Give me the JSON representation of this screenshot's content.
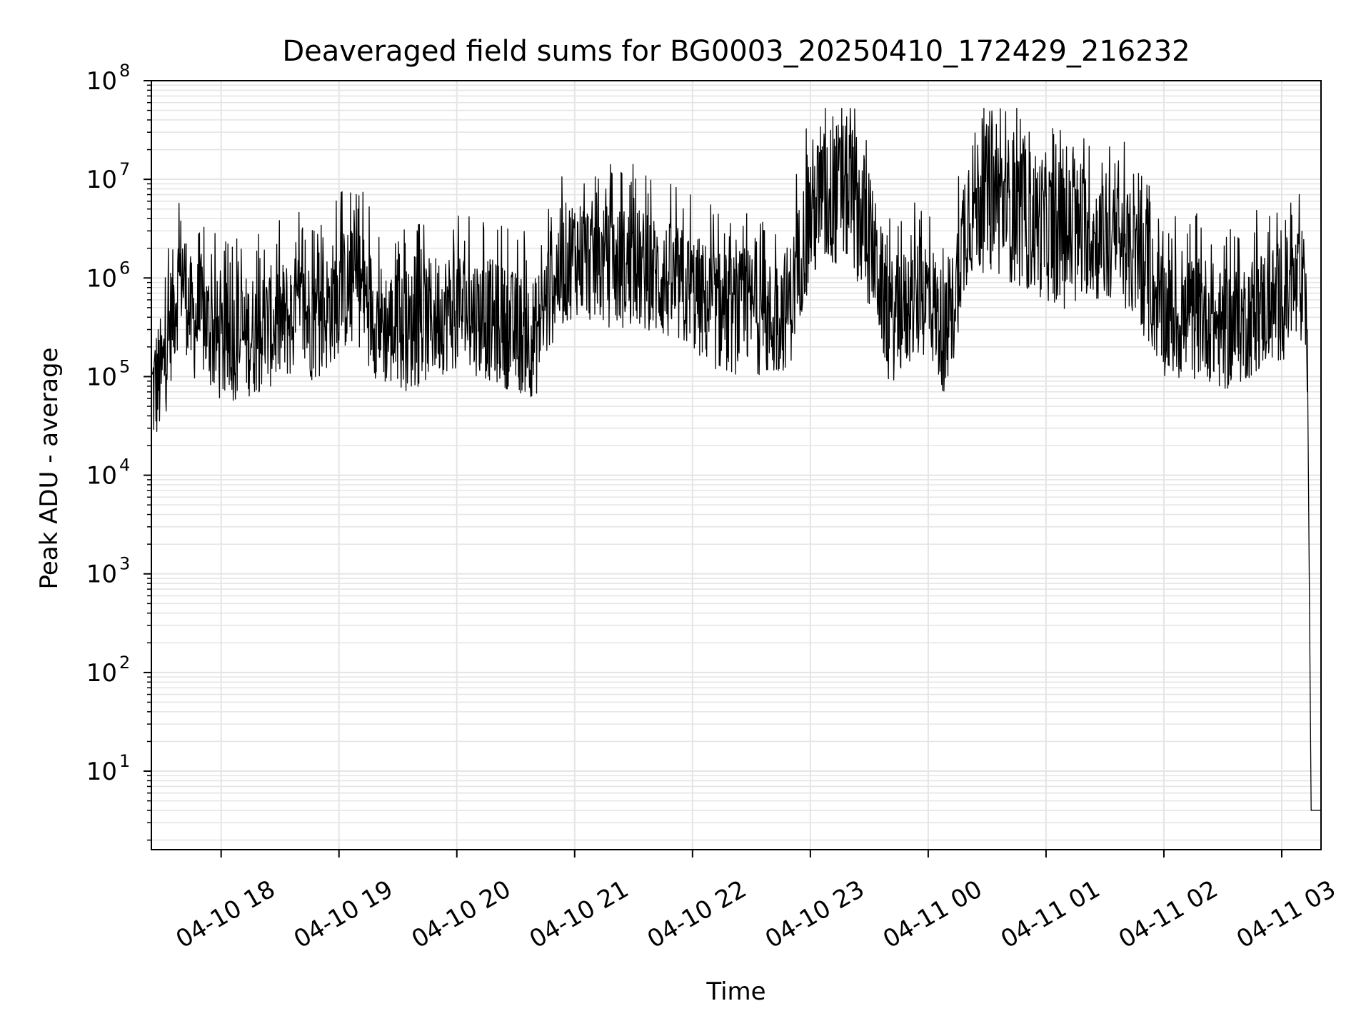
{
  "chart_data": {
    "type": "line",
    "title": "Deaveraged field sums for BG0003_20250410_172429_216232",
    "xlabel": "Time",
    "ylabel": "Peak ADU - average",
    "yscale": "log",
    "ylim": [
      1.6,
      100000000
    ],
    "xlim": [
      "2025-04-10 17:24:29",
      "2025-04-11 03:20:00"
    ],
    "grid": true,
    "legend": "none",
    "line_color": "#000000",
    "grid_color": "#e5e5e5",
    "y_ticks": [
      {
        "value": 10,
        "base": "10",
        "exp": "1"
      },
      {
        "value": 100,
        "base": "10",
        "exp": "2"
      },
      {
        "value": 1000,
        "base": "10",
        "exp": "3"
      },
      {
        "value": 10000,
        "base": "10",
        "exp": "4"
      },
      {
        "value": 100000,
        "base": "10",
        "exp": "5"
      },
      {
        "value": 1000000,
        "base": "10",
        "exp": "6"
      },
      {
        "value": 10000000,
        "base": "10",
        "exp": "7"
      },
      {
        "value": 100000000,
        "base": "10",
        "exp": "8"
      }
    ],
    "x_ticks": [
      {
        "value": "2025-04-10 18:00",
        "label": "04-10 18"
      },
      {
        "value": "2025-04-10 19:00",
        "label": "04-10 19"
      },
      {
        "value": "2025-04-10 20:00",
        "label": "04-10 20"
      },
      {
        "value": "2025-04-10 21:00",
        "label": "04-10 21"
      },
      {
        "value": "2025-04-10 22:00",
        "label": "04-10 22"
      },
      {
        "value": "2025-04-10 23:00",
        "label": "04-10 23"
      },
      {
        "value": "2025-04-11 00:00",
        "label": "04-11 00"
      },
      {
        "value": "2025-04-11 01:00",
        "label": "04-11 01"
      },
      {
        "value": "2025-04-11 02:00",
        "label": "04-11 02"
      },
      {
        "value": "2025-04-11 03:00",
        "label": "04-11 03"
      }
    ],
    "series": [
      {
        "x": [
          "2025-04-10 17:25",
          "2025-04-10 17:30",
          "2025-04-10 17:35",
          "2025-04-10 17:40",
          "2025-04-10 17:45",
          "2025-04-10 17:50",
          "2025-04-10 17:55",
          "2025-04-10 18:00",
          "2025-04-10 18:10",
          "2025-04-10 18:20",
          "2025-04-10 18:30",
          "2025-04-10 18:40",
          "2025-04-10 18:50",
          "2025-04-10 19:00",
          "2025-04-10 19:10",
          "2025-04-10 19:20",
          "2025-04-10 19:30",
          "2025-04-10 19:40",
          "2025-04-10 19:50",
          "2025-04-10 20:00",
          "2025-04-10 20:10",
          "2025-04-10 20:20",
          "2025-04-10 20:30",
          "2025-04-10 20:40",
          "2025-04-10 20:50",
          "2025-04-10 21:00",
          "2025-04-10 21:10",
          "2025-04-10 21:20",
          "2025-04-10 21:30",
          "2025-04-10 21:40",
          "2025-04-10 21:50",
          "2025-04-10 22:00",
          "2025-04-10 22:10",
          "2025-04-10 22:20",
          "2025-04-10 22:30",
          "2025-04-10 22:40",
          "2025-04-10 22:50",
          "2025-04-10 23:00",
          "2025-04-10 23:10",
          "2025-04-10 23:20",
          "2025-04-10 23:30",
          "2025-04-10 23:40",
          "2025-04-10 23:50",
          "2025-04-11 00:00",
          "2025-04-11 00:10",
          "2025-04-11 00:20",
          "2025-04-11 00:30",
          "2025-04-11 00:40",
          "2025-04-11 00:50",
          "2025-04-11 01:00",
          "2025-04-11 01:10",
          "2025-04-11 01:20",
          "2025-04-11 01:30",
          "2025-04-11 01:40",
          "2025-04-11 01:50",
          "2025-04-11 02:00",
          "2025-04-11 02:10",
          "2025-04-11 02:20",
          "2025-04-11 02:30",
          "2025-04-11 02:40",
          "2025-04-11 02:50",
          "2025-04-11 03:00",
          "2025-04-11 03:05",
          "2025-04-11 03:10",
          "2025-04-11 03:13",
          "2025-04-11 03:15",
          "2025-04-11 03:20"
        ],
        "values": [
          100000,
          150000,
          600000,
          1800000,
          500000,
          600000,
          400000,
          300000,
          350000,
          400000,
          500000,
          600000,
          500000,
          1000000,
          1200000,
          500000,
          400000,
          450000,
          600000,
          700000,
          600000,
          500000,
          400000,
          350000,
          1500000,
          2500000,
          2000000,
          1800000,
          1800000,
          1500000,
          1200000,
          1000000,
          700000,
          600000,
          700000,
          500000,
          800000,
          7000000,
          10000000,
          12000000,
          4000000,
          500000,
          700000,
          1000000,
          300000,
          8000000,
          10000000,
          8000000,
          6000000,
          5000000,
          4000000,
          4000000,
          3000000,
          3000000,
          1500000,
          600000,
          500000,
          600000,
          400000,
          500000,
          700000,
          800000,
          1000000,
          1200000,
          300000,
          4,
          4
        ]
      }
    ]
  }
}
